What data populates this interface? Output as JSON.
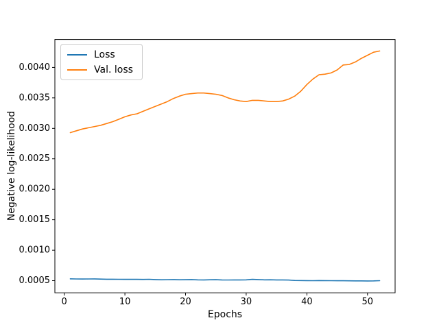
{
  "figure": {
    "xlabel": "Epochs",
    "ylabel": "Negative log-likelihood",
    "background": "#ffffff",
    "spine_color": "#000000",
    "tick_color": "#000000"
  },
  "legend": {
    "position": "upper-left",
    "items": [
      {
        "label": "Loss",
        "color": "#1f77b4"
      },
      {
        "label": "Val. loss",
        "color": "#ff7f0e"
      }
    ]
  },
  "chart_data": {
    "type": "line",
    "title": "",
    "xlabel": "Epochs",
    "ylabel": "Negative log-likelihood",
    "grid": false,
    "legend_position": "upper left",
    "xlim": [
      -1.55,
      54.55
    ],
    "ylim": [
      0.000301,
      0.004459
    ],
    "xticks": [
      0,
      10,
      20,
      30,
      40,
      50
    ],
    "yticks": [
      0.0005,
      0.001,
      0.0015,
      0.002,
      0.0025,
      0.003,
      0.0035,
      0.004
    ],
    "ytick_labels": [
      "0.0005",
      "0.0010",
      "0.0015",
      "0.0020",
      "0.0025",
      "0.0030",
      "0.0035",
      "0.0040"
    ],
    "x": [
      1,
      2,
      3,
      4,
      5,
      6,
      7,
      8,
      9,
      10,
      11,
      12,
      13,
      14,
      15,
      16,
      17,
      18,
      19,
      20,
      21,
      22,
      23,
      24,
      25,
      26,
      27,
      28,
      29,
      30,
      31,
      32,
      33,
      34,
      35,
      36,
      37,
      38,
      39,
      40,
      41,
      42,
      43,
      44,
      45,
      46,
      47,
      48,
      49,
      50,
      51,
      52
    ],
    "series": [
      {
        "name": "Loss",
        "color": "#1f77b4",
        "values": [
          0.00053,
          0.000528,
          0.000527,
          0.000528,
          0.000529,
          0.000526,
          0.000524,
          0.000524,
          0.000523,
          0.000522,
          0.000522,
          0.000521,
          0.00052,
          0.000523,
          0.000518,
          0.000515,
          0.000517,
          0.000518,
          0.000515,
          0.000516,
          0.000518,
          0.000514,
          0.000512,
          0.000515,
          0.000516,
          0.000513,
          0.000511,
          0.000513,
          0.000512,
          0.000514,
          0.000522,
          0.000518,
          0.000514,
          0.000515,
          0.000513,
          0.000512,
          0.00051,
          0.000504,
          0.000502,
          0.000501,
          0.0005,
          0.000502,
          0.000501,
          0.0005,
          0.000499,
          0.000499,
          0.000498,
          0.000497,
          0.000497,
          0.000496,
          0.000497,
          0.0005
        ]
      },
      {
        "name": "Val. loss",
        "color": "#ff7f0e",
        "values": [
          0.00293,
          0.00296,
          0.00299,
          0.00301,
          0.00303,
          0.00305,
          0.00308,
          0.00311,
          0.00315,
          0.00319,
          0.00322,
          0.00324,
          0.00328,
          0.00332,
          0.00336,
          0.0034,
          0.00344,
          0.00349,
          0.00353,
          0.00356,
          0.00357,
          0.00358,
          0.00358,
          0.00357,
          0.00356,
          0.00354,
          0.0035,
          0.00347,
          0.00345,
          0.00344,
          0.00346,
          0.00346,
          0.00345,
          0.00344,
          0.00344,
          0.00345,
          0.00348,
          0.00353,
          0.00361,
          0.00372,
          0.00381,
          0.00388,
          0.00389,
          0.00391,
          0.00396,
          0.00404,
          0.00405,
          0.00409,
          0.00415,
          0.0042,
          0.00425,
          0.00427
        ]
      }
    ]
  }
}
